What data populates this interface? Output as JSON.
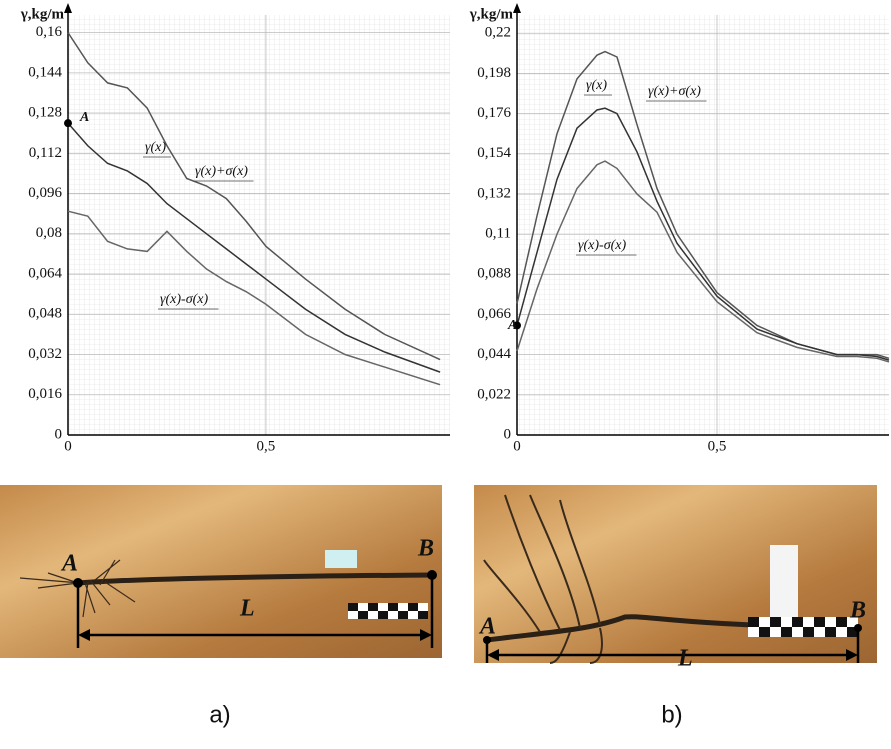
{
  "chart_data": [
    {
      "type": "line",
      "y_label": "γ,kg/m",
      "x": [
        0,
        0.05,
        0.1,
        0.15,
        0.2,
        0.25,
        0.3,
        0.35,
        0.4,
        0.45,
        0.5,
        0.6,
        0.7,
        0.8,
        0.94
      ],
      "series": [
        {
          "name": "γ(x)+σ(x)",
          "color": "#555555",
          "values": [
            0.16,
            0.148,
            0.14,
            0.138,
            0.13,
            0.115,
            0.102,
            0.099,
            0.094,
            0.085,
            0.075,
            0.062,
            0.05,
            0.04,
            0.03
          ]
        },
        {
          "name": "γ(x)",
          "color": "#333333",
          "values": [
            0.124,
            0.115,
            0.108,
            0.105,
            0.1,
            0.092,
            0.086,
            0.08,
            0.074,
            0.068,
            0.062,
            0.05,
            0.04,
            0.033,
            0.025
          ]
        },
        {
          "name": "γ(x)-σ(x)",
          "color": "#666666",
          "values": [
            0.089,
            0.087,
            0.077,
            0.074,
            0.073,
            0.081,
            0.073,
            0.066,
            0.061,
            0.057,
            0.052,
            0.04,
            0.032,
            0.027,
            0.02
          ]
        }
      ],
      "point_label": "A",
      "xlim": [
        0,
        0.965
      ],
      "ylim": [
        0,
        0.167
      ],
      "xticks": [
        0,
        {
          "value": 0.5,
          "label": "0,5"
        }
      ],
      "yticks": [
        0,
        {
          "value": 0.016,
          "label": "0,016"
        },
        {
          "value": 0.032,
          "label": "0,032"
        },
        {
          "value": 0.048,
          "label": "0,048"
        },
        {
          "value": 0.064,
          "label": "0,064"
        },
        {
          "value": 0.08,
          "label": "0,08"
        },
        {
          "value": 0.096,
          "label": "0,096"
        },
        {
          "value": 0.112,
          "label": "0,112"
        },
        {
          "value": 0.128,
          "label": "0,128"
        },
        {
          "value": 0.144,
          "label": "0,144"
        },
        {
          "value": 0.16,
          "label": "0,16"
        }
      ],
      "grid": true
    },
    {
      "type": "line",
      "y_label": "γ,kg/m",
      "x": [
        0,
        0.05,
        0.1,
        0.15,
        0.2,
        0.22,
        0.25,
        0.3,
        0.35,
        0.4,
        0.5,
        0.6,
        0.7,
        0.8,
        0.85,
        0.9,
        0.93
      ],
      "series": [
        {
          "name": "γ(x)+σ(x)",
          "color": "#555555",
          "values": [
            0.072,
            0.12,
            0.165,
            0.195,
            0.208,
            0.21,
            0.207,
            0.17,
            0.135,
            0.11,
            0.078,
            0.06,
            0.05,
            0.044,
            0.044,
            0.044,
            0.042
          ]
        },
        {
          "name": "γ(x)",
          "color": "#333333",
          "values": [
            0.06,
            0.1,
            0.14,
            0.168,
            0.178,
            0.179,
            0.176,
            0.155,
            0.128,
            0.105,
            0.076,
            0.058,
            0.05,
            0.044,
            0.044,
            0.043,
            0.041
          ]
        },
        {
          "name": "γ(x)-σ(x)",
          "color": "#666666",
          "values": [
            0.046,
            0.08,
            0.11,
            0.135,
            0.148,
            0.15,
            0.146,
            0.132,
            0.122,
            0.1,
            0.073,
            0.056,
            0.048,
            0.043,
            0.043,
            0.042,
            0.04
          ]
        }
      ],
      "point_label": "A",
      "xlim": [
        0,
        0.93
      ],
      "ylim": [
        0,
        0.23
      ],
      "xticks": [
        0,
        {
          "value": 0.5,
          "label": "0,5"
        }
      ],
      "yticks": [
        0,
        {
          "value": 0.022,
          "label": "0,022"
        },
        {
          "value": 0.044,
          "label": "0,044"
        },
        {
          "value": 0.066,
          "label": "0,066"
        },
        {
          "value": 0.088,
          "label": "0,088"
        },
        {
          "value": 0.11,
          "label": "0,11"
        },
        {
          "value": 0.132,
          "label": "0,132"
        },
        {
          "value": 0.154,
          "label": "0,154"
        },
        {
          "value": 0.176,
          "label": "0,176"
        },
        {
          "value": 0.198,
          "label": "0,198"
        },
        {
          "value": 0.22,
          "label": "0,22"
        }
      ],
      "grid": true
    }
  ],
  "panels": [
    {
      "caption": "a)",
      "start_label": "A",
      "end_label": "B",
      "length_label": "L"
    },
    {
      "caption": "b)",
      "start_label": "A",
      "end_label": "B",
      "length_label": "L"
    }
  ]
}
